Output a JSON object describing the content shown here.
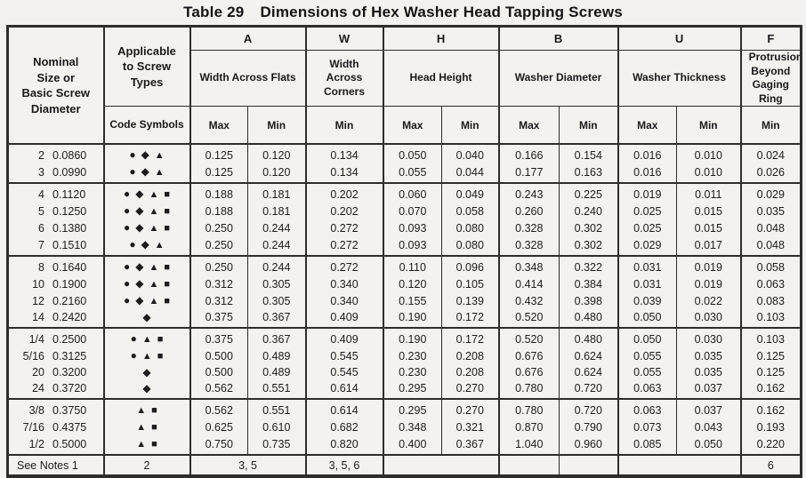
{
  "page": {
    "title_label": "Table 29",
    "title_text": "Dimensions of Hex Washer Head Tapping Screws"
  },
  "colors": {
    "paper": "#f4f2ee",
    "ink": "#1c1c1c",
    "border": "#2f2d2a"
  },
  "header": {
    "nominal_label": "Nominal Size or Basic Screw Diameter",
    "applicable_label": "Applicable to Screw Types",
    "code_symbols_label": "Code Symbols",
    "columns": [
      {
        "letter": "A",
        "description": "Width Across Flats",
        "subcolumns": [
          "Max",
          "Min"
        ]
      },
      {
        "letter": "W",
        "description": "Width Across Corners",
        "subcolumns": [
          "Min"
        ]
      },
      {
        "letter": "H",
        "description": "Head Height",
        "subcolumns": [
          "Max",
          "Min"
        ]
      },
      {
        "letter": "B",
        "description": "Washer Diameter",
        "subcolumns": [
          "Max",
          "Min"
        ]
      },
      {
        "letter": "U",
        "description": "Washer Thickness",
        "subcolumns": [
          "Max",
          "Min"
        ]
      },
      {
        "letter": "F",
        "description": "Protrusion Beyond Gaging Ring",
        "subcolumns": [
          "Min"
        ]
      }
    ]
  },
  "symbol_glyphs": {
    "circle": "●",
    "diamond": "◆",
    "triangle": "▲",
    "square": "■"
  },
  "row_groups": [
    {
      "rows": [
        {
          "size": "2",
          "diameter": "0.0860",
          "screw_types": [
            "circle",
            "diamond",
            "triangle"
          ],
          "values": [
            "0.125",
            "0.120",
            "0.134",
            "0.050",
            "0.040",
            "0.166",
            "0.154",
            "0.016",
            "0.010",
            "0.024"
          ]
        },
        {
          "size": "3",
          "diameter": "0.0990",
          "screw_types": [
            "circle",
            "diamond",
            "triangle"
          ],
          "values": [
            "0.125",
            "0.120",
            "0.134",
            "0.055",
            "0.044",
            "0.177",
            "0.163",
            "0.016",
            "0.010",
            "0.026"
          ]
        }
      ]
    },
    {
      "rows": [
        {
          "size": "4",
          "diameter": "0.1120",
          "screw_types": [
            "circle",
            "diamond",
            "triangle",
            "square"
          ],
          "values": [
            "0.188",
            "0.181",
            "0.202",
            "0.060",
            "0.049",
            "0.243",
            "0.225",
            "0.019",
            "0.011",
            "0.029"
          ]
        },
        {
          "size": "5",
          "diameter": "0.1250",
          "screw_types": [
            "circle",
            "diamond",
            "triangle",
            "square"
          ],
          "values": [
            "0.188",
            "0.181",
            "0.202",
            "0.070",
            "0.058",
            "0.260",
            "0.240",
            "0.025",
            "0.015",
            "0.035"
          ]
        },
        {
          "size": "6",
          "diameter": "0.1380",
          "screw_types": [
            "circle",
            "diamond",
            "triangle",
            "square"
          ],
          "values": [
            "0.250",
            "0.244",
            "0.272",
            "0.093",
            "0.080",
            "0.328",
            "0.302",
            "0.025",
            "0.015",
            "0.048"
          ]
        },
        {
          "size": "7",
          "diameter": "0.1510",
          "screw_types": [
            "circle",
            "diamond",
            "triangle"
          ],
          "values": [
            "0.250",
            "0.244",
            "0.272",
            "0.093",
            "0.080",
            "0.328",
            "0.302",
            "0.029",
            "0.017",
            "0.048"
          ]
        }
      ]
    },
    {
      "rows": [
        {
          "size": "8",
          "diameter": "0.1640",
          "screw_types": [
            "circle",
            "diamond",
            "triangle",
            "square"
          ],
          "values": [
            "0.250",
            "0.244",
            "0.272",
            "0.110",
            "0.096",
            "0.348",
            "0.322",
            "0.031",
            "0.019",
            "0.058"
          ]
        },
        {
          "size": "10",
          "diameter": "0.1900",
          "screw_types": [
            "circle",
            "diamond",
            "triangle",
            "square"
          ],
          "values": [
            "0.312",
            "0.305",
            "0.340",
            "0.120",
            "0.105",
            "0.414",
            "0.384",
            "0.031",
            "0.019",
            "0.063"
          ]
        },
        {
          "size": "12",
          "diameter": "0.2160",
          "screw_types": [
            "circle",
            "diamond",
            "triangle",
            "square"
          ],
          "values": [
            "0.312",
            "0.305",
            "0.340",
            "0.155",
            "0.139",
            "0.432",
            "0.398",
            "0.039",
            "0.022",
            "0.083"
          ]
        },
        {
          "size": "14",
          "diameter": "0.2420",
          "screw_types": [
            "diamond"
          ],
          "values": [
            "0.375",
            "0.367",
            "0.409",
            "0.190",
            "0.172",
            "0.520",
            "0.480",
            "0.050",
            "0.030",
            "0.103"
          ]
        }
      ]
    },
    {
      "rows": [
        {
          "size": "1/4",
          "diameter": "0.2500",
          "screw_types": [
            "circle",
            "triangle",
            "square"
          ],
          "values": [
            "0.375",
            "0.367",
            "0.409",
            "0.190",
            "0.172",
            "0.520",
            "0.480",
            "0.050",
            "0.030",
            "0.103"
          ]
        },
        {
          "size": "5/16",
          "diameter": "0.3125",
          "screw_types": [
            "circle",
            "triangle",
            "square"
          ],
          "values": [
            "0.500",
            "0.489",
            "0.545",
            "0.230",
            "0.208",
            "0.676",
            "0.624",
            "0.055",
            "0.035",
            "0.125"
          ]
        },
        {
          "size": "20",
          "diameter": "0.3200",
          "screw_types": [
            "diamond"
          ],
          "values": [
            "0.500",
            "0.489",
            "0.545",
            "0.230",
            "0.208",
            "0.676",
            "0.624",
            "0.055",
            "0.035",
            "0.125"
          ]
        },
        {
          "size": "24",
          "diameter": "0.3720",
          "screw_types": [
            "diamond"
          ],
          "values": [
            "0.562",
            "0.551",
            "0.614",
            "0.295",
            "0.270",
            "0.780",
            "0.720",
            "0.063",
            "0.037",
            "0.162"
          ]
        }
      ]
    },
    {
      "rows": [
        {
          "size": "3/8",
          "diameter": "0.3750",
          "screw_types": [
            "triangle",
            "square"
          ],
          "values": [
            "0.562",
            "0.551",
            "0.614",
            "0.295",
            "0.270",
            "0.780",
            "0.720",
            "0.063",
            "0.037",
            "0.162"
          ]
        },
        {
          "size": "7/16",
          "diameter": "0.4375",
          "screw_types": [
            "triangle",
            "square"
          ],
          "values": [
            "0.625",
            "0.610",
            "0.682",
            "0.348",
            "0.321",
            "0.870",
            "0.790",
            "0.073",
            "0.043",
            "0.193"
          ]
        },
        {
          "size": "1/2",
          "diameter": "0.5000",
          "screw_types": [
            "triangle",
            "square"
          ],
          "values": [
            "0.750",
            "0.735",
            "0.820",
            "0.400",
            "0.367",
            "1.040",
            "0.960",
            "0.085",
            "0.050",
            "0.220"
          ]
        }
      ]
    }
  ],
  "footer": {
    "see_notes": "See Notes  1",
    "screw_types_note": "2",
    "width_across_flats_note": "3, 5",
    "width_across_corners_note": "3, 5, 6",
    "head_height_note": "",
    "washer_diameter_max_note": "",
    "washer_diameter_min_note": "",
    "washer_thickness_note": "",
    "protrusion_note": "6"
  }
}
